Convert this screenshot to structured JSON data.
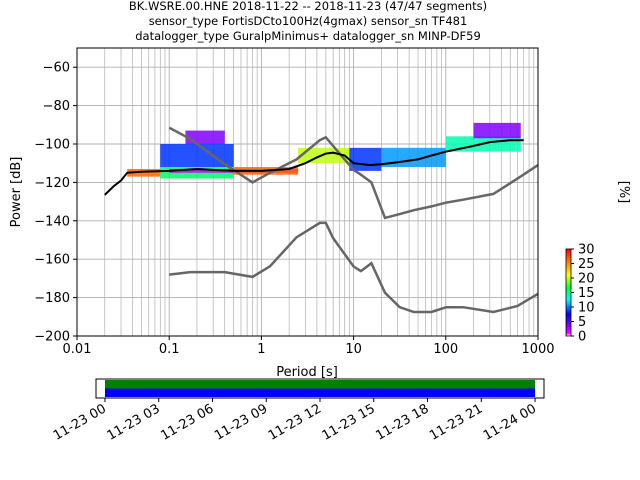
{
  "title_lines": [
    "BK.WSRE.00.HNE   2018-11-22 -- 2018-11-23  (47/47 segments)",
    "sensor_type FortisDCto100Hz(4gmax) sensor_sn TF481",
    "datalogger_type GuralpMinimus+ datalogger_sn MINP-DF59"
  ],
  "chart_data": [
    {
      "type": "heatmap",
      "xlabel": "Period [s]",
      "ylabel": "Power [dB]",
      "xscale": "log",
      "xlim": [
        0.01,
        1000
      ],
      "ylim": [
        -200,
        -50
      ],
      "x_ticks": [
        {
          "value": 0.01,
          "label": "0.01"
        },
        {
          "value": 0.1,
          "label": "0.1"
        },
        {
          "value": 1,
          "label": "1"
        },
        {
          "value": 10,
          "label": "10"
        },
        {
          "value": 100,
          "label": "100"
        },
        {
          "value": 1000,
          "label": "1000"
        }
      ],
      "y_ticks": [
        {
          "value": -60,
          "label": "−60"
        },
        {
          "value": -80,
          "label": "−80"
        },
        {
          "value": -100,
          "label": "−100"
        },
        {
          "value": -120,
          "label": "−120"
        },
        {
          "value": -140,
          "label": "−140"
        },
        {
          "value": -160,
          "label": "−160"
        },
        {
          "value": -180,
          "label": "−180"
        },
        {
          "value": -200,
          "label": "−200"
        }
      ],
      "grid": true,
      "colorbar": {
        "label": "[%]",
        "range": [
          0,
          30
        ],
        "ticks": [
          {
            "value": 0,
            "label": "0"
          },
          {
            "value": 5,
            "label": "5"
          },
          {
            "value": 10,
            "label": "10"
          },
          {
            "value": 15,
            "label": "15"
          },
          {
            "value": 20,
            "label": "20"
          },
          {
            "value": 25,
            "label": "25"
          },
          {
            "value": 30,
            "label": "30"
          }
        ]
      },
      "noise_model_high": [
        [
          0.1,
          -91.5
        ],
        [
          0.17,
          -97.4
        ],
        [
          0.4,
          -110.5
        ],
        [
          0.8,
          -120
        ],
        [
          1.24,
          -115
        ],
        [
          2.4,
          -108
        ],
        [
          4.3,
          -98
        ],
        [
          5.0,
          -96.5
        ],
        [
          6.0,
          -101
        ],
        [
          10,
          -113.5
        ],
        [
          12,
          -116
        ],
        [
          15.6,
          -120
        ],
        [
          21.9,
          -138.5
        ],
        [
          31.6,
          -136.5
        ],
        [
          45,
          -134.5
        ],
        [
          70,
          -132.5
        ],
        [
          101,
          -130.5
        ],
        [
          154,
          -129
        ],
        [
          328,
          -126
        ],
        [
          600,
          -118
        ],
        [
          1000,
          -111
        ]
      ],
      "noise_model_low": [
        [
          0.1,
          -168
        ],
        [
          0.17,
          -166.7
        ],
        [
          0.4,
          -166.7
        ],
        [
          0.8,
          -169.2
        ],
        [
          1.24,
          -163.7
        ],
        [
          2.4,
          -148.6
        ],
        [
          4.3,
          -141.1
        ],
        [
          5.0,
          -141.1
        ],
        [
          6.0,
          -149
        ],
        [
          10,
          -163.8
        ],
        [
          12,
          -166.2
        ],
        [
          15.6,
          -162.1
        ],
        [
          21.9,
          -177.5
        ],
        [
          31.6,
          -185
        ],
        [
          45,
          -187.5
        ],
        [
          70,
          -187.5
        ],
        [
          101,
          -185
        ],
        [
          154,
          -185
        ],
        [
          328,
          -187.5
        ],
        [
          600,
          -184.4
        ],
        [
          1000,
          -178
        ]
      ],
      "mean_psd": [
        [
          0.02,
          -126.5
        ],
        [
          0.025,
          -122
        ],
        [
          0.03,
          -119
        ],
        [
          0.035,
          -115
        ],
        [
          0.05,
          -114.5
        ],
        [
          0.1,
          -114
        ],
        [
          0.2,
          -113
        ],
        [
          0.3,
          -113.5
        ],
        [
          0.5,
          -114
        ],
        [
          1,
          -114
        ],
        [
          1.5,
          -113.5
        ],
        [
          2,
          -113
        ],
        [
          3,
          -110
        ],
        [
          4,
          -107
        ],
        [
          5,
          -105
        ],
        [
          6,
          -104.5
        ],
        [
          8,
          -106
        ],
        [
          10,
          -110
        ],
        [
          15,
          -111
        ],
        [
          20,
          -110.5
        ],
        [
          30,
          -109.5
        ],
        [
          50,
          -108
        ],
        [
          70,
          -106
        ],
        [
          100,
          -104
        ],
        [
          200,
          -101
        ],
        [
          300,
          -99
        ],
        [
          500,
          -98
        ],
        [
          700,
          -98
        ]
      ],
      "psd_density": [
        {
          "x_range": [
            0.035,
            0.08
          ],
          "y_range": [
            -117,
            -113
          ],
          "percent": 26
        },
        {
          "x_range": [
            0.08,
            0.5
          ],
          "y_range": [
            -118,
            -112
          ],
          "percent": 16
        },
        {
          "x_range": [
            0.08,
            0.5
          ],
          "y_range": [
            -112,
            -100
          ],
          "percent": 8
        },
        {
          "x_range": [
            0.15,
            0.4
          ],
          "y_range": [
            -100,
            -93
          ],
          "percent": 3
        },
        {
          "x_range": [
            0.1,
            2.5
          ],
          "y_range": [
            -115,
            -113
          ],
          "percent": 1
        },
        {
          "x_range": [
            0.5,
            2.5
          ],
          "y_range": [
            -116,
            -112
          ],
          "percent": 26
        },
        {
          "x_range": [
            2.5,
            9
          ],
          "y_range": [
            -110,
            -102
          ],
          "percent": 20
        },
        {
          "x_range": [
            9,
            20
          ],
          "y_range": [
            -114,
            -102
          ],
          "percent": 8
        },
        {
          "x_range": [
            20,
            100
          ],
          "y_range": [
            -112,
            -102
          ],
          "percent": 10
        },
        {
          "x_range": [
            100,
            650
          ],
          "y_range": [
            -104,
            -96
          ],
          "percent": 14
        },
        {
          "x_range": [
            200,
            650
          ],
          "y_range": [
            -97,
            -89
          ],
          "percent": 3
        }
      ]
    },
    {
      "type": "bar",
      "xlabel": "",
      "ylabel": "",
      "time_ticks": [
        "11-23 00",
        "11-23 03",
        "11-23 06",
        "11-23 09",
        "11-23 12",
        "11-23 15",
        "11-23 18",
        "11-23 21",
        "11-24 00"
      ],
      "time_range_hours": [
        -0.5,
        24.5
      ],
      "coverage": [
        {
          "start_hour": 0,
          "end_hour": 24,
          "color": "#008000"
        },
        {
          "start_hour": 0,
          "end_hour": 24,
          "color": "#0000ff"
        }
      ]
    }
  ]
}
